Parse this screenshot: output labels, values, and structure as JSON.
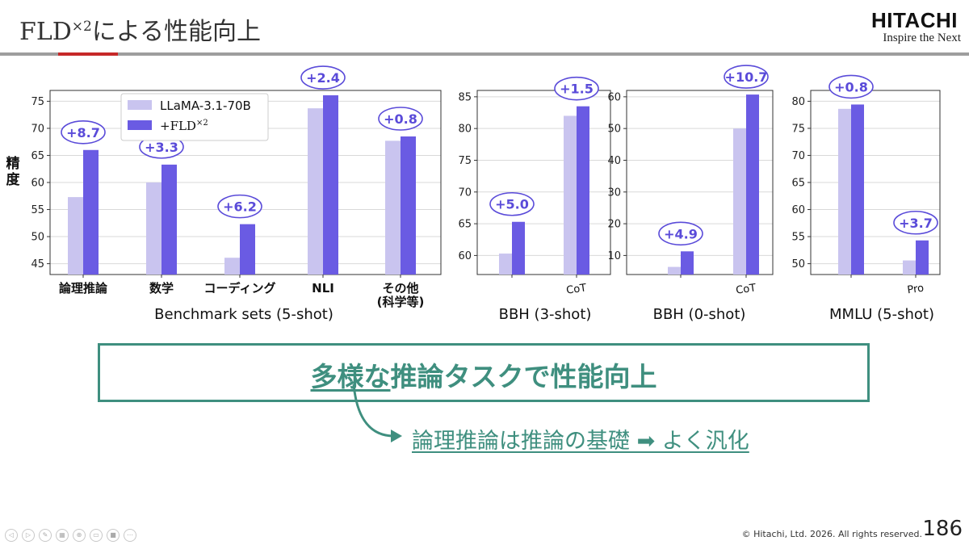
{
  "slide": {
    "title_prefix": "FLD",
    "title_sup": "×2",
    "title_suffix": "による性能向上",
    "logo_name": "HITACHI",
    "logo_tagline": "Inspire the Next",
    "page_number": "186",
    "copyright": "© Hitachi, Ltd. 2026. All rights reserved."
  },
  "callout": {
    "main_underlined": "多様な",
    "main_rest": "推論タスクで性能向上",
    "sub": "論理推論は推論の基礎 ➡ よく汎化"
  },
  "colors": {
    "baseline": "#c9c4ef",
    "fld": "#6a5be3",
    "gain_text": "#5a4bd9",
    "accent_teal": "#3f8f7f",
    "logo_red": "#c62828"
  },
  "legend": {
    "baseline_label": "LLaMA-3.1-70B",
    "fld_label": "+FLD",
    "fld_label_sup": "×2"
  },
  "chart_data": [
    {
      "type": "bar",
      "ylabel": "精度",
      "xlabel": "Benchmark sets (5-shot)",
      "categories": [
        "論理推論",
        "数学",
        "コーディング",
        "NLI",
        "その他\n(科学等)"
      ],
      "ylim": [
        43,
        77
      ],
      "yticks": [
        45,
        50,
        55,
        60,
        65,
        70,
        75
      ],
      "grid": true,
      "legend_position": "top-left",
      "series": [
        {
          "name": "LLaMA-3.1-70B",
          "values": [
            57.3,
            60.0,
            46.1,
            73.7,
            67.7
          ]
        },
        {
          "name": "+FLD×2",
          "values": [
            66.0,
            63.3,
            52.3,
            76.1,
            68.5
          ]
        }
      ],
      "annotations": [
        "+8.7",
        "+3.3",
        "+6.2",
        "+2.4",
        "+0.8"
      ]
    },
    {
      "type": "bar",
      "xlabel": "BBH (3-shot)",
      "categories": [
        "",
        "CoT"
      ],
      "ylim": [
        57,
        86
      ],
      "yticks": [
        60,
        65,
        70,
        75,
        80,
        85
      ],
      "grid": true,
      "series": [
        {
          "name": "LLaMA-3.1-70B",
          "values": [
            60.3,
            82.0
          ]
        },
        {
          "name": "+FLD×2",
          "values": [
            65.3,
            83.5
          ]
        }
      ],
      "annotations": [
        "+5.0",
        "+1.5"
      ]
    },
    {
      "type": "bar",
      "xlabel": "BBH (0-shot)",
      "categories": [
        "",
        "CoT"
      ],
      "ylim": [
        4,
        62
      ],
      "yticks": [
        10,
        20,
        30,
        40,
        50,
        60
      ],
      "grid": true,
      "series": [
        {
          "name": "LLaMA-3.1-70B",
          "values": [
            6.4,
            50.0
          ]
        },
        {
          "name": "+FLD×2",
          "values": [
            11.3,
            60.7
          ]
        }
      ],
      "annotations": [
        "+4.9",
        "+10.7"
      ]
    },
    {
      "type": "bar",
      "xlabel": "MMLU (5-shot)",
      "categories": [
        "",
        "Pro"
      ],
      "ylim": [
        48,
        82
      ],
      "yticks": [
        50,
        55,
        60,
        65,
        70,
        75,
        80
      ],
      "grid": true,
      "series": [
        {
          "name": "LLaMA-3.1-70B",
          "values": [
            78.6,
            50.6
          ]
        },
        {
          "name": "+FLD×2",
          "values": [
            79.4,
            54.3
          ]
        }
      ],
      "annotations": [
        "+0.8",
        "+3.7"
      ]
    }
  ]
}
